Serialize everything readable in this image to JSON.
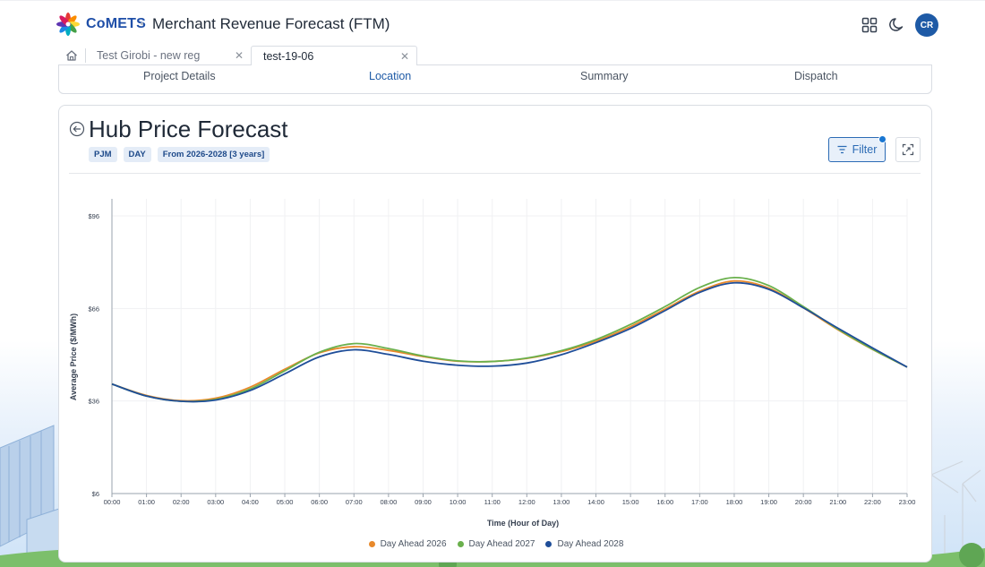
{
  "header": {
    "logo_text": "CoMETS",
    "title": "Merchant Revenue Forecast (FTM)",
    "avatar_initials": "CR",
    "icons": [
      "apps-grid-icon",
      "moon-icon"
    ]
  },
  "tabs": [
    {
      "label": "Test Girobi - new reg",
      "active": false
    },
    {
      "label": "test-19-06",
      "active": true
    }
  ],
  "steps": [
    {
      "label": "Project Details",
      "active": false
    },
    {
      "label": "Location",
      "active": true
    },
    {
      "label": "Summary",
      "active": false
    },
    {
      "label": "Dispatch",
      "active": false
    }
  ],
  "card": {
    "title": "Hub Price Forecast",
    "chips": [
      "PJM",
      "DAY",
      "From 2026-2028 [3 years]"
    ],
    "filter_label": "Filter"
  },
  "colors": {
    "accent": "#1e5aa6",
    "series_2026": "#e8892b",
    "series_2027": "#6ab04c",
    "series_2028": "#1f4e99"
  },
  "chart_data": {
    "type": "line",
    "xlabel": "Time (Hour of Day)",
    "ylabel": "Average Price ($/MWh)",
    "ylim": [
      6,
      96
    ],
    "yticks": [
      "$6",
      "$36",
      "$66",
      "$96"
    ],
    "categories": [
      "00:00",
      "01:00",
      "02:00",
      "03:00",
      "04:00",
      "05:00",
      "06:00",
      "07:00",
      "08:00",
      "09:00",
      "10:00",
      "11:00",
      "12:00",
      "13:00",
      "14:00",
      "15:00",
      "16:00",
      "17:00",
      "18:00",
      "19:00",
      "20:00",
      "21:00",
      "22:00",
      "23:00"
    ],
    "legend_position": "bottom",
    "grid": true,
    "series": [
      {
        "name": "Day Ahead 2026",
        "color": "#e8892b",
        "values": [
          41.5,
          37.8,
          36.1,
          36.9,
          40.5,
          46.3,
          51.6,
          53.6,
          52.4,
          50.4,
          48.9,
          48.8,
          49.8,
          52.0,
          55.4,
          60.1,
          65.8,
          71.6,
          74.9,
          72.6,
          66.2,
          59.1,
          52.7,
          47.0
        ]
      },
      {
        "name": "Day Ahead 2027",
        "color": "#6ab04c",
        "values": [
          41.5,
          37.6,
          35.9,
          36.5,
          39.9,
          45.8,
          51.8,
          54.6,
          53.0,
          50.6,
          49.0,
          48.8,
          49.9,
          52.3,
          55.9,
          60.8,
          66.6,
          72.8,
          76.0,
          73.4,
          66.6,
          59.3,
          52.8,
          47.0
        ]
      },
      {
        "name": "Day Ahead 2028",
        "color": "#1f4e99",
        "values": [
          41.5,
          37.6,
          35.9,
          36.3,
          39.4,
          44.8,
          50.3,
          52.6,
          51.1,
          48.9,
          47.6,
          47.3,
          48.3,
          51.0,
          54.9,
          59.5,
          65.3,
          71.2,
          74.3,
          72.2,
          66.2,
          59.6,
          53.2,
          47.0
        ]
      }
    ]
  }
}
